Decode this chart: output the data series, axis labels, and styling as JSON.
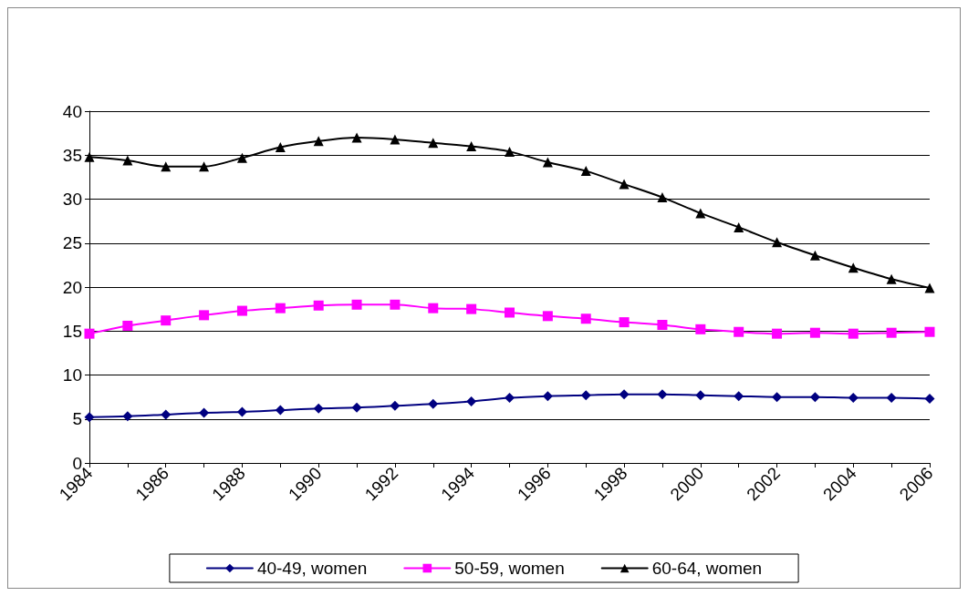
{
  "chart_data": {
    "type": "line",
    "categories": [
      "1984",
      null,
      "1986",
      null,
      "1988",
      null,
      "1990",
      null,
      "1992",
      null,
      "1994",
      null,
      "1996",
      null,
      "1998",
      null,
      "2000",
      null,
      "2002",
      null,
      "2004",
      null,
      "2006"
    ],
    "series": [
      {
        "name": "40-49, women",
        "color": "#000080",
        "marker": "diamond",
        "values": [
          5.2,
          5.3,
          5.5,
          5.7,
          5.8,
          6.0,
          6.2,
          6.3,
          6.5,
          6.7,
          7.0,
          7.4,
          7.6,
          7.7,
          7.8,
          7.8,
          7.7,
          7.6,
          7.5,
          7.5,
          7.4,
          7.4,
          7.3
        ]
      },
      {
        "name": "50-59, women",
        "color": "#ff00ff",
        "marker": "square",
        "values": [
          14.7,
          15.6,
          16.2,
          16.8,
          17.3,
          17.6,
          17.9,
          18.0,
          18.0,
          17.6,
          17.5,
          17.1,
          16.7,
          16.4,
          16.0,
          15.7,
          15.2,
          14.9,
          14.7,
          14.8,
          14.7,
          14.8,
          14.9
        ]
      },
      {
        "name": "60-64, women",
        "color": "#000000",
        "marker": "triangle",
        "values": [
          34.8,
          34.4,
          33.7,
          33.7,
          34.7,
          35.9,
          36.6,
          37.0,
          36.8,
          36.4,
          36.0,
          35.4,
          34.2,
          33.2,
          31.7,
          30.2,
          28.4,
          26.8,
          25.1,
          23.6,
          22.2,
          20.9,
          19.9
        ]
      }
    ],
    "ylim": [
      0,
      40
    ],
    "yticks": [
      0,
      5,
      10,
      15,
      20,
      25,
      30,
      35,
      40
    ],
    "grid": "y",
    "legend": "bottom",
    "line_style": "solid"
  }
}
